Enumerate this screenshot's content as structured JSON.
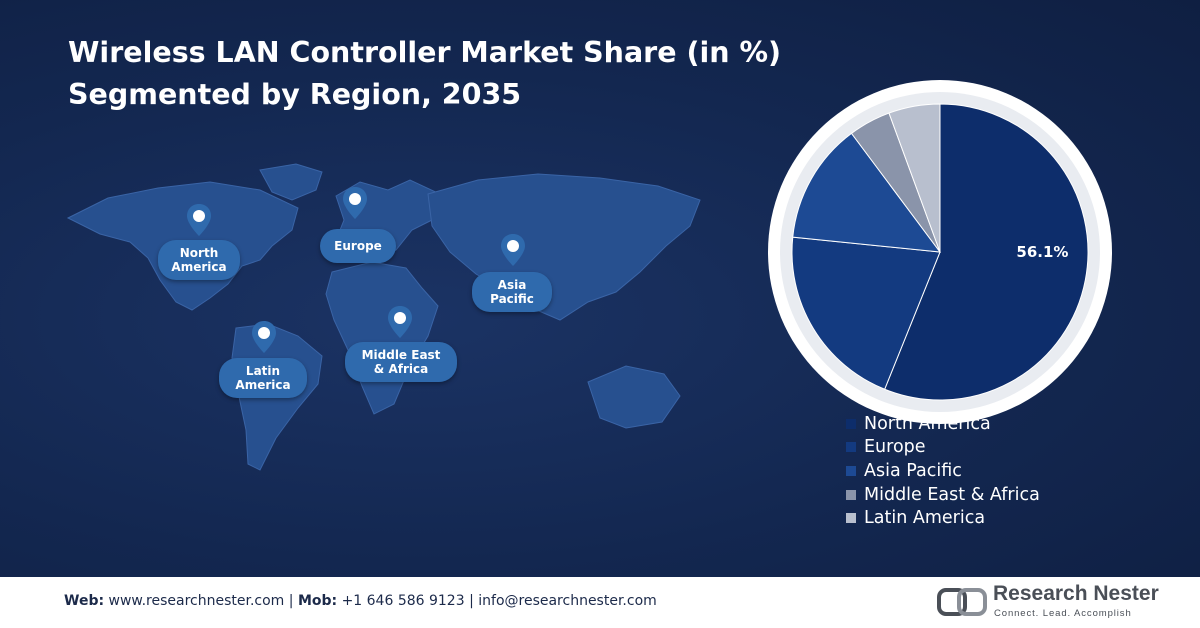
{
  "title": {
    "line1": "Wireless LAN Controller Market Share (in %)",
    "line2": "Segmented by Region, 2035"
  },
  "map_labels": [
    {
      "line1": "North",
      "line2": "America"
    },
    {
      "line1": "Europe",
      "line2": ""
    },
    {
      "line1": "Asia",
      "line2": "Pacific"
    },
    {
      "line1": "Latin",
      "line2": "America"
    },
    {
      "line1": "Middle East",
      "line2": "& Africa"
    }
  ],
  "chart_data": {
    "type": "pie",
    "title": "Wireless LAN Controller Market Share (in %) Segmented by Region, 2035",
    "series": [
      {
        "name": "North America",
        "value": 56.1,
        "color": "#0d2d6b",
        "label": "56.1%"
      },
      {
        "name": "Europe",
        "value": 20.5,
        "color": "#133a80",
        "label": ""
      },
      {
        "name": "Asia Pacific",
        "value": 13.2,
        "color": "#1d4a94",
        "label": ""
      },
      {
        "name": "Middle East & Africa",
        "value": 4.6,
        "color": "#8a94aa",
        "label": ""
      },
      {
        "name": "Latin America",
        "value": 5.6,
        "color": "#b8bfce",
        "label": ""
      }
    ],
    "legend_placement": "bottom-right"
  },
  "colors": {
    "background": "#14264d",
    "region_label": "#2f6aad",
    "continent": "#27508f"
  },
  "footer": {
    "web_label": "Web:",
    "web_value": "www.researchnester.com",
    "mob_label": "Mob:",
    "mob_value": "+1 646 586 9123",
    "email_value": "info@researchnester.com",
    "separator": "|",
    "brand": "Research Nester",
    "tagline": "Connect. Lead. Accomplish"
  }
}
